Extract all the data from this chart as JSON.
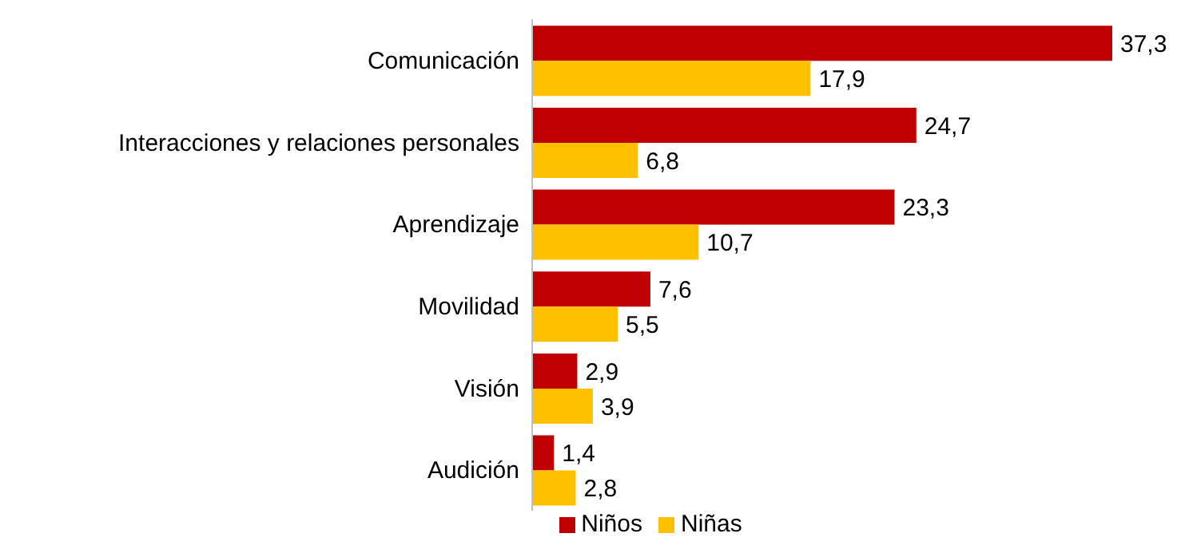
{
  "chart_data": {
    "type": "bar",
    "orientation": "horizontal",
    "categories": [
      "Comunicación",
      "Interacciones y relaciones personales",
      "Aprendizaje",
      "Movilidad",
      "Visión",
      "Audición"
    ],
    "series": [
      {
        "name": "Niños",
        "color": "#c00000",
        "values": [
          37.3,
          24.7,
          23.3,
          7.6,
          2.9,
          1.4
        ],
        "value_labels": [
          "37,3",
          "24,7",
          "23,3",
          "7,6",
          "2,9",
          "1,4"
        ]
      },
      {
        "name": "Niñas",
        "color": "#ffc000",
        "values": [
          17.9,
          6.8,
          10.7,
          5.5,
          3.9,
          2.8
        ],
        "value_labels": [
          "17,9",
          "6,8",
          "10,7",
          "5,5",
          "3,9",
          "2,8"
        ]
      }
    ],
    "legend": "bottom",
    "grid": false
  }
}
